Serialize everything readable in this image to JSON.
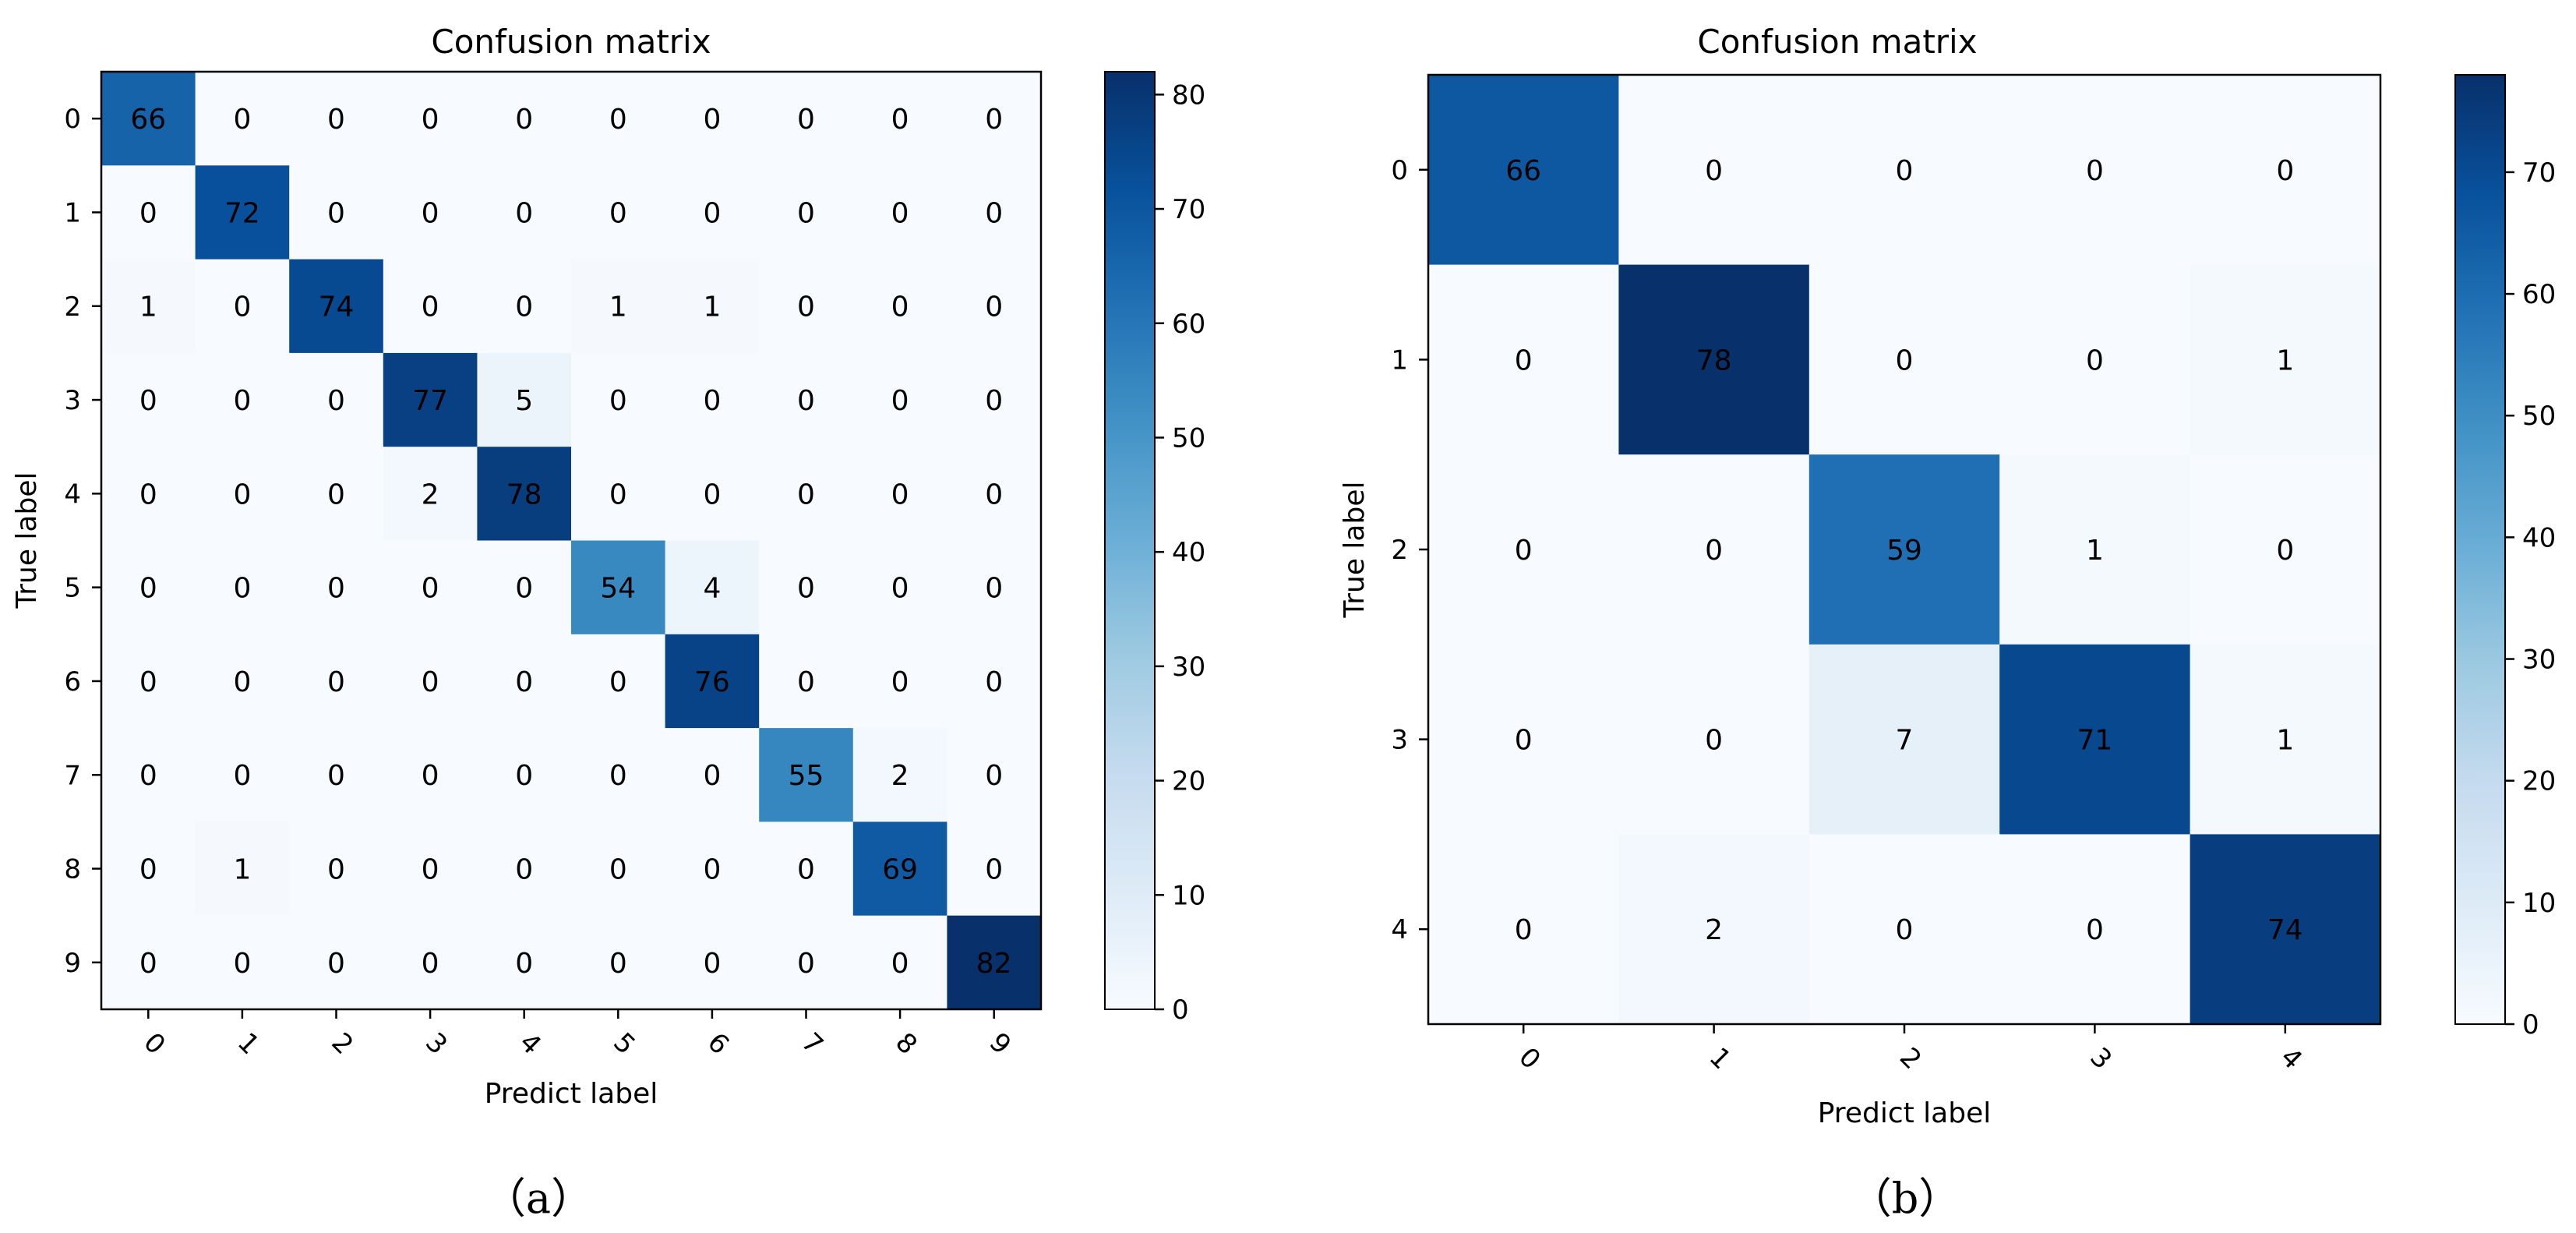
{
  "chart_data": [
    {
      "type": "heatmap",
      "panel_caption": "（a）",
      "title": "Confusion matrix",
      "xlabel": "Predict label",
      "ylabel": "True label",
      "labels": [
        "0",
        "1",
        "2",
        "3",
        "4",
        "5",
        "6",
        "7",
        "8",
        "9"
      ],
      "matrix": [
        [
          66,
          0,
          0,
          0,
          0,
          0,
          0,
          0,
          0,
          0
        ],
        [
          0,
          72,
          0,
          0,
          0,
          0,
          0,
          0,
          0,
          0
        ],
        [
          1,
          0,
          74,
          0,
          0,
          1,
          1,
          0,
          0,
          0
        ],
        [
          0,
          0,
          0,
          77,
          5,
          0,
          0,
          0,
          0,
          0
        ],
        [
          0,
          0,
          0,
          2,
          78,
          0,
          0,
          0,
          0,
          0
        ],
        [
          0,
          0,
          0,
          0,
          0,
          54,
          4,
          0,
          0,
          0
        ],
        [
          0,
          0,
          0,
          0,
          0,
          0,
          76,
          0,
          0,
          0
        ],
        [
          0,
          0,
          0,
          0,
          0,
          0,
          0,
          55,
          2,
          0
        ],
        [
          0,
          1,
          0,
          0,
          0,
          0,
          0,
          0,
          69,
          0
        ],
        [
          0,
          0,
          0,
          0,
          0,
          0,
          0,
          0,
          0,
          82
        ]
      ],
      "colorbar": {
        "min": 0,
        "max": 82,
        "ticks": [
          0,
          10,
          20,
          30,
          40,
          50,
          60,
          70,
          80
        ]
      },
      "colormap": "Blues"
    },
    {
      "type": "heatmap",
      "panel_caption": "（b）",
      "title": "Confusion matrix",
      "xlabel": "Predict label",
      "ylabel": "True label",
      "labels": [
        "0",
        "1",
        "2",
        "3",
        "4"
      ],
      "matrix": [
        [
          66,
          0,
          0,
          0,
          0
        ],
        [
          0,
          78,
          0,
          0,
          1
        ],
        [
          0,
          0,
          59,
          1,
          0
        ],
        [
          0,
          0,
          7,
          71,
          1
        ],
        [
          0,
          2,
          0,
          0,
          74
        ]
      ],
      "colorbar": {
        "min": 0,
        "max": 78,
        "ticks": [
          0,
          10,
          20,
          30,
          40,
          50,
          60,
          70
        ]
      },
      "colormap": "Blues"
    }
  ],
  "colors": {
    "blues_stops": [
      "#f7fbff",
      "#deebf7",
      "#c6dbef",
      "#9ecae1",
      "#6baed6",
      "#4292c6",
      "#2171b5",
      "#08519c",
      "#08306b"
    ],
    "dark_text": "#000000"
  }
}
